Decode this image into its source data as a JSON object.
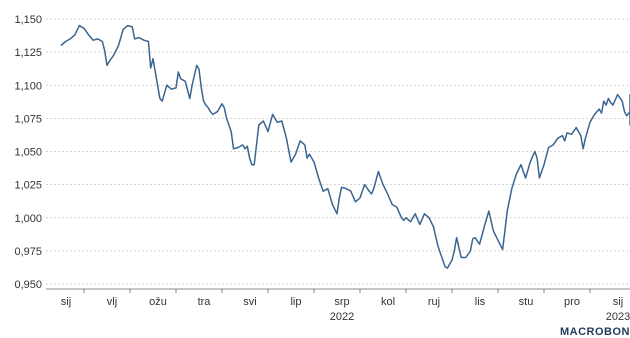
{
  "chart_data": {
    "type": "line",
    "title": "",
    "xlabel": "",
    "ylabel": "",
    "ylim": [
      0.95,
      1.15
    ],
    "y_ticks": [
      "1,150",
      "1,125",
      "1,100",
      "1,075",
      "1,050",
      "1,025",
      "1,000",
      "0,975",
      "0,950"
    ],
    "y_tick_values": [
      1.15,
      1.125,
      1.1,
      1.075,
      1.05,
      1.025,
      1.0,
      0.975,
      0.95
    ],
    "x_ticks": [
      "sij",
      "vlj",
      "ožu",
      "tra",
      "svi",
      "lip",
      "srp",
      "kol",
      "ruj",
      "lis",
      "stu",
      "pro",
      "sij"
    ],
    "year_labels": [
      {
        "label": "2022",
        "month_index": 6
      },
      {
        "label": "2023",
        "month_index": 12
      }
    ],
    "grid": true,
    "line_color": "#3a6590",
    "series": [
      {
        "values": [
          [
            0.0,
            1.13
          ],
          [
            0.1,
            1.133
          ],
          [
            0.2,
            1.135
          ],
          [
            0.3,
            1.138
          ],
          [
            0.4,
            1.145
          ],
          [
            0.5,
            1.143
          ],
          [
            0.6,
            1.138
          ],
          [
            0.7,
            1.134
          ],
          [
            0.8,
            1.135
          ],
          [
            0.9,
            1.133
          ],
          [
            0.95,
            1.126
          ],
          [
            1.0,
            1.115
          ],
          [
            1.05,
            1.118
          ],
          [
            1.15,
            1.123
          ],
          [
            1.25,
            1.13
          ],
          [
            1.35,
            1.142
          ],
          [
            1.45,
            1.145
          ],
          [
            1.55,
            1.144
          ],
          [
            1.6,
            1.135
          ],
          [
            1.7,
            1.136
          ],
          [
            1.8,
            1.134
          ],
          [
            1.9,
            1.133
          ],
          [
            1.95,
            1.113
          ],
          [
            2.0,
            1.12
          ],
          [
            2.05,
            1.11
          ],
          [
            2.1,
            1.1
          ],
          [
            2.15,
            1.09
          ],
          [
            2.2,
            1.088
          ],
          [
            2.3,
            1.1
          ],
          [
            2.4,
            1.097
          ],
          [
            2.5,
            1.098
          ],
          [
            2.55,
            1.11
          ],
          [
            2.6,
            1.105
          ],
          [
            2.7,
            1.103
          ],
          [
            2.8,
            1.09
          ],
          [
            2.85,
            1.1
          ],
          [
            2.95,
            1.115
          ],
          [
            3.0,
            1.112
          ],
          [
            3.05,
            1.098
          ],
          [
            3.1,
            1.088
          ],
          [
            3.15,
            1.085
          ],
          [
            3.2,
            1.083
          ],
          [
            3.25,
            1.08
          ],
          [
            3.3,
            1.078
          ],
          [
            3.4,
            1.08
          ],
          [
            3.5,
            1.086
          ],
          [
            3.55,
            1.083
          ],
          [
            3.6,
            1.075
          ],
          [
            3.7,
            1.065
          ],
          [
            3.75,
            1.052
          ],
          [
            3.85,
            1.053
          ],
          [
            3.95,
            1.055
          ],
          [
            4.0,
            1.052
          ],
          [
            4.05,
            1.054
          ],
          [
            4.1,
            1.045
          ],
          [
            4.15,
            1.04
          ],
          [
            4.2,
            1.04
          ],
          [
            4.25,
            1.055
          ],
          [
            4.3,
            1.07
          ],
          [
            4.4,
            1.073
          ],
          [
            4.5,
            1.065
          ],
          [
            4.6,
            1.078
          ],
          [
            4.7,
            1.072
          ],
          [
            4.8,
            1.073
          ],
          [
            4.9,
            1.06
          ],
          [
            5.0,
            1.042
          ],
          [
            5.1,
            1.048
          ],
          [
            5.2,
            1.058
          ],
          [
            5.3,
            1.055
          ],
          [
            5.35,
            1.045
          ],
          [
            5.4,
            1.048
          ],
          [
            5.5,
            1.042
          ],
          [
            5.6,
            1.03
          ],
          [
            5.7,
            1.02
          ],
          [
            5.8,
            1.022
          ],
          [
            5.9,
            1.01
          ],
          [
            6.0,
            1.003
          ],
          [
            6.05,
            1.015
          ],
          [
            6.1,
            1.023
          ],
          [
            6.2,
            1.022
          ],
          [
            6.3,
            1.02
          ],
          [
            6.4,
            1.012
          ],
          [
            6.5,
            1.015
          ],
          [
            6.6,
            1.025
          ],
          [
            6.7,
            1.02
          ],
          [
            6.75,
            1.018
          ],
          [
            6.8,
            1.022
          ],
          [
            6.9,
            1.035
          ],
          [
            7.0,
            1.025
          ],
          [
            7.1,
            1.018
          ],
          [
            7.2,
            1.01
          ],
          [
            7.3,
            1.008
          ],
          [
            7.4,
            1.0
          ],
          [
            7.45,
            0.998
          ],
          [
            7.5,
            1.0
          ],
          [
            7.6,
            0.997
          ],
          [
            7.7,
            1.003
          ],
          [
            7.75,
            0.999
          ],
          [
            7.8,
            0.995
          ],
          [
            7.9,
            1.003
          ],
          [
            8.0,
            1.0
          ],
          [
            8.1,
            0.993
          ],
          [
            8.15,
            0.985
          ],
          [
            8.2,
            0.978
          ],
          [
            8.3,
            0.968
          ],
          [
            8.35,
            0.963
          ],
          [
            8.4,
            0.962
          ],
          [
            8.5,
            0.968
          ],
          [
            8.55,
            0.975
          ],
          [
            8.6,
            0.985
          ],
          [
            8.7,
            0.97
          ],
          [
            8.8,
            0.97
          ],
          [
            8.9,
            0.975
          ],
          [
            8.95,
            0.984
          ],
          [
            9.0,
            0.985
          ],
          [
            9.1,
            0.98
          ],
          [
            9.2,
            0.993
          ],
          [
            9.3,
            1.005
          ],
          [
            9.4,
            0.99
          ],
          [
            9.5,
            0.983
          ],
          [
            9.6,
            0.976
          ],
          [
            9.65,
            0.99
          ],
          [
            9.7,
            1.005
          ],
          [
            9.8,
            1.022
          ],
          [
            9.9,
            1.033
          ],
          [
            10.0,
            1.04
          ],
          [
            10.1,
            1.03
          ],
          [
            10.2,
            1.042
          ],
          [
            10.3,
            1.05
          ],
          [
            10.35,
            1.045
          ],
          [
            10.4,
            1.03
          ],
          [
            10.5,
            1.04
          ],
          [
            10.6,
            1.053
          ],
          [
            10.7,
            1.055
          ],
          [
            10.8,
            1.06
          ],
          [
            10.9,
            1.062
          ],
          [
            10.95,
            1.058
          ],
          [
            11.0,
            1.064
          ],
          [
            11.1,
            1.063
          ],
          [
            11.2,
            1.068
          ],
          [
            11.3,
            1.062
          ],
          [
            11.35,
            1.052
          ],
          [
            11.4,
            1.06
          ],
          [
            11.5,
            1.072
          ],
          [
            11.6,
            1.078
          ],
          [
            11.7,
            1.082
          ],
          [
            11.75,
            1.079
          ],
          [
            11.8,
            1.088
          ],
          [
            11.85,
            1.085
          ],
          [
            11.9,
            1.09
          ],
          [
            11.95,
            1.087
          ],
          [
            12.0,
            1.085
          ],
          [
            12.1,
            1.093
          ],
          [
            12.2,
            1.088
          ],
          [
            12.25,
            1.08
          ],
          [
            12.3,
            1.077
          ],
          [
            12.4,
            1.08
          ],
          [
            12.45,
            1.083
          ],
          [
            12.5,
            1.085
          ],
          [
            12.55,
            1.093
          ],
          [
            12.6,
            1.085
          ],
          [
            12.7,
            1.073
          ],
          [
            12.8,
            1.07
          ],
          [
            12.9,
            1.072
          ]
        ]
      }
    ]
  },
  "branding": {
    "logo_text": "MACROBON"
  }
}
